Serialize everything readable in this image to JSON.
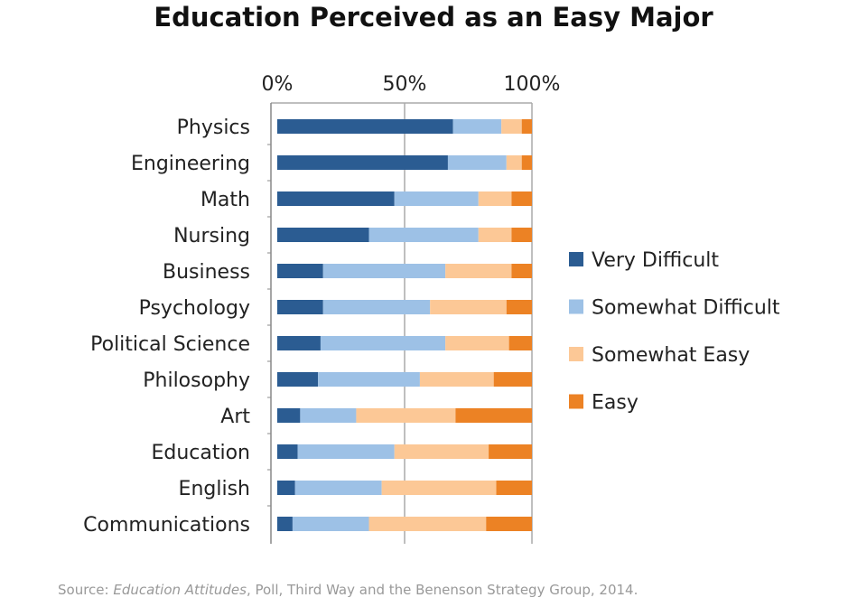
{
  "chart_data": {
    "type": "bar",
    "orientation": "horizontal",
    "stacked": true,
    "title": "Education Perceived as an Easy Major",
    "x_ticks": [
      "0%",
      "50%",
      "100%"
    ],
    "xlim": [
      0,
      100
    ],
    "grid": true,
    "legend_placement": "right",
    "categories": [
      "Physics",
      "Engineering",
      "Math",
      "Nursing",
      "Business",
      "Psychology",
      "Political Science",
      "Philosophy",
      "Art",
      "Education",
      "English",
      "Communications"
    ],
    "series": [
      {
        "name": "Very Difficult",
        "color": "#2b5c92",
        "values": [
          69,
          67,
          46,
          36,
          18,
          18,
          17,
          16,
          9,
          8,
          7,
          6
        ]
      },
      {
        "name": "Somewhat Difficult",
        "color": "#9dc1e6",
        "values": [
          19,
          23,
          33,
          43,
          48,
          42,
          49,
          40,
          22,
          38,
          34,
          30
        ]
      },
      {
        "name": "Somewhat Easy",
        "color": "#fcc896",
        "values": [
          8,
          6,
          13,
          13,
          26,
          30,
          25,
          29,
          39,
          37,
          45,
          46
        ]
      },
      {
        "name": "Easy",
        "color": "#ec8224",
        "values": [
          4,
          4,
          8,
          8,
          8,
          10,
          9,
          15,
          30,
          17,
          14,
          18
        ]
      }
    ]
  },
  "source": {
    "prefix": "Source: ",
    "italic": "Education Attitudes",
    "suffix": ", Poll, Third Way and the Benenson Strategy Group, 2014."
  }
}
